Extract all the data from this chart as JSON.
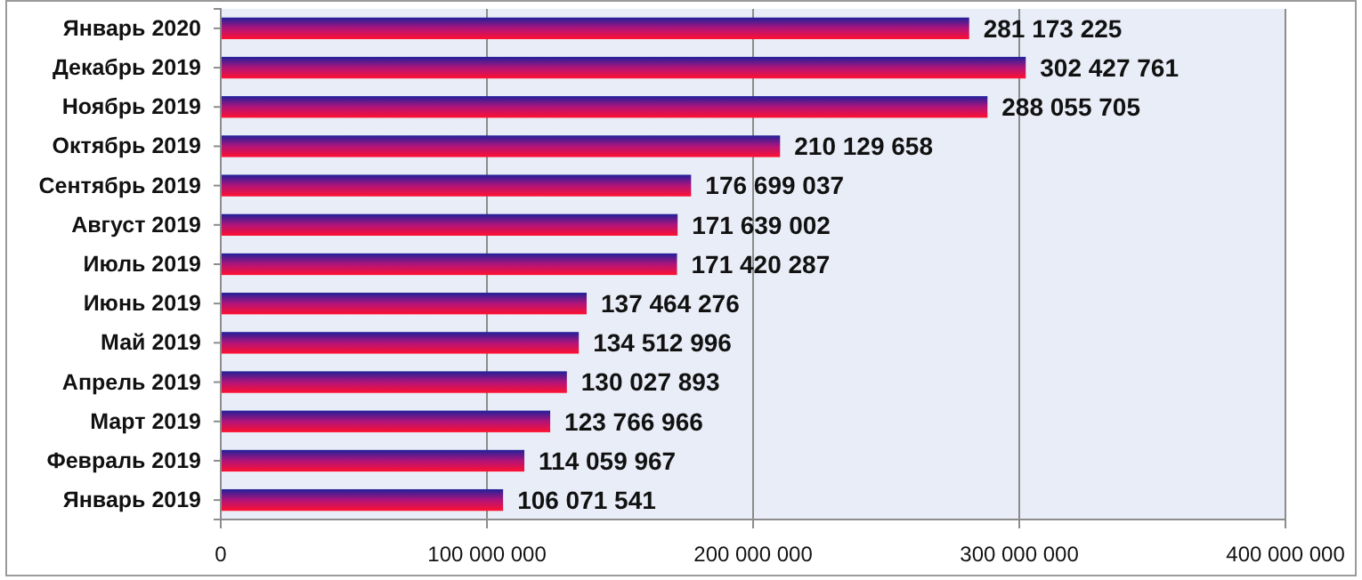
{
  "chart_data": {
    "type": "bar",
    "orientation": "horizontal",
    "categories": [
      "Январь 2020",
      "Декабрь 2019",
      "Ноябрь 2019",
      "Октябрь 2019",
      "Сентябрь 2019",
      "Август 2019",
      "Июль 2019",
      "Июнь 2019",
      "Май 2019",
      "Апрель 2019",
      "Март 2019",
      "Февраль 2019",
      "Январь 2019"
    ],
    "values": [
      281173225,
      302427761,
      288055705,
      210129658,
      176699037,
      171639002,
      171420287,
      137464276,
      134512996,
      130027893,
      123766966,
      114059967,
      106071541
    ],
    "color": "#b0147a",
    "xlim": [
      0,
      400000000
    ],
    "xticks": [
      {
        "value": 0,
        "label": "0"
      },
      {
        "value": 100000000,
        "label": "100 000 000"
      },
      {
        "value": 200000000,
        "label": "200 000 000"
      },
      {
        "value": 300000000,
        "label": "300 000 000"
      },
      {
        "value": 400000000,
        "label": "400 000 000"
      }
    ],
    "grid": "x",
    "data_labels": true
  }
}
